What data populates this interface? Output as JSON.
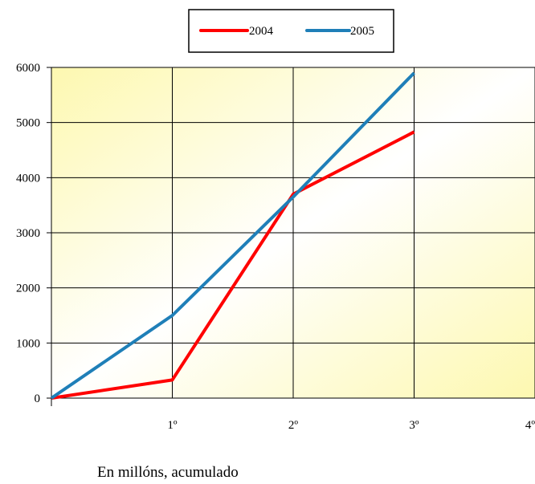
{
  "chart_data": {
    "type": "line",
    "title": "",
    "xlabel": "",
    "ylabel": "",
    "categories": [
      "",
      "1º",
      "2º",
      "3º",
      "4º"
    ],
    "ylim": [
      0,
      6000
    ],
    "yticks": [
      "0",
      "1000",
      "2000",
      "3000",
      "4000",
      "5000",
      "6000"
    ],
    "grid": true,
    "legend_position": "top-center",
    "series": [
      {
        "name": "2004",
        "color": "#ff0000",
        "values": [
          0,
          330,
          3700,
          4830,
          null
        ]
      },
      {
        "name": "2005",
        "color": "#1f7fb8",
        "values": [
          0,
          1500,
          3650,
          5900,
          null
        ]
      }
    ],
    "caption": "En millóns, acumulado"
  }
}
